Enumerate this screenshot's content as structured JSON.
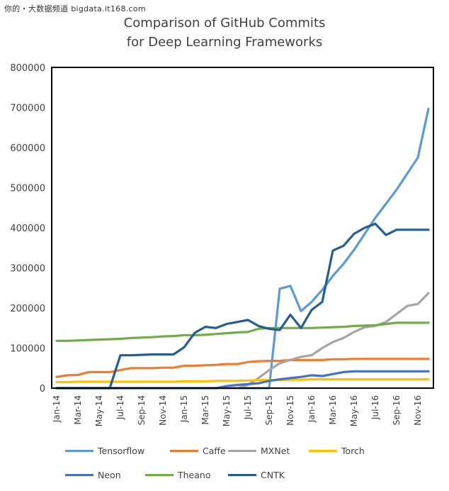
{
  "watermark": "你的・大数据频道 bigdata.it168.com",
  "chart_data": {
    "type": "line",
    "title": [
      "Comparison of GitHub Commits",
      "for Deep Learning Frameworks"
    ],
    "xlabel": "",
    "ylabel": "",
    "ylim": [
      0,
      800000
    ],
    "yticks": [
      "0",
      "100000",
      "200000",
      "300000",
      "400000",
      "500000",
      "600000",
      "700000",
      "800000"
    ],
    "x": [
      "Jan-14",
      "Feb-14",
      "Mar-14",
      "Apr-14",
      "May-14",
      "Jun-14",
      "Jul-14",
      "Aug-14",
      "Sep-14",
      "Oct-14",
      "Nov-14",
      "Dec-14",
      "Jan-15",
      "Feb-15",
      "Mar-15",
      "Apr-15",
      "May-15",
      "Jun-15",
      "Jul-15",
      "Aug-15",
      "Sep-15",
      "Oct-15",
      "Nov-15",
      "Dec-15",
      "Jan-16",
      "Feb-16",
      "Mar-16",
      "Apr-16",
      "May-16",
      "Jun-16",
      "Jul-16",
      "Aug-16",
      "Sep-16",
      "Oct-16",
      "Nov-16",
      "Dec-16"
    ],
    "xticks": [
      "Jan-14",
      "Mar-14",
      "May-14",
      "Jul-14",
      "Sep-14",
      "Nov-14",
      "Jan-15",
      "Mar-15",
      "May-15",
      "Jul-15",
      "Sep-15",
      "Nov-15",
      "Jan-16",
      "Mar-16",
      "May-16",
      "Jul-16",
      "Sep-16",
      "Nov-16"
    ],
    "grid": false,
    "legend_position": "bottom",
    "series": [
      {
        "name": "Tensorflow",
        "color": "#5b9bd5",
        "values": [
          0,
          0,
          0,
          0,
          0,
          0,
          0,
          0,
          0,
          0,
          0,
          0,
          0,
          0,
          0,
          0,
          0,
          0,
          0,
          0,
          0,
          248000,
          255000,
          192000,
          215000,
          245000,
          280000,
          310000,
          345000,
          385000,
          425000,
          460000,
          495000,
          535000,
          575000,
          697000
        ]
      },
      {
        "name": "Caffe",
        "color": "#ed7d31",
        "values": [
          28000,
          32000,
          33000,
          40000,
          40000,
          40000,
          45000,
          50000,
          50000,
          50000,
          51000,
          51000,
          56000,
          56000,
          57000,
          58000,
          60000,
          60000,
          65000,
          67000,
          68000,
          68000,
          70000,
          70000,
          70000,
          70000,
          72000,
          72000,
          73000,
          73000,
          73000,
          73000,
          73000,
          73000,
          73000,
          73000
        ]
      },
      {
        "name": "MXNet",
        "color": "#a5a5a5",
        "values": [
          0,
          0,
          0,
          0,
          0,
          0,
          0,
          0,
          0,
          0,
          0,
          0,
          0,
          0,
          0,
          0,
          0,
          0,
          8000,
          25000,
          45000,
          62000,
          70000,
          78000,
          82000,
          100000,
          115000,
          125000,
          140000,
          152000,
          155000,
          165000,
          185000,
          205000,
          210000,
          237000
        ]
      },
      {
        "name": "Torch",
        "color": "#ffc000",
        "values": [
          15000,
          15000,
          16000,
          16000,
          16000,
          16000,
          16000,
          16000,
          16000,
          16000,
          16000,
          16000,
          17000,
          17000,
          17000,
          18000,
          18000,
          18000,
          19000,
          20000,
          20000,
          20000,
          21000,
          21000,
          22000,
          22000,
          22000,
          22000,
          22000,
          22000,
          22000,
          22000,
          22000,
          22000,
          22000,
          22000
        ]
      },
      {
        "name": "Neon",
        "color": "#4472c4",
        "values": [
          0,
          0,
          0,
          0,
          0,
          0,
          0,
          0,
          0,
          0,
          0,
          0,
          0,
          0,
          0,
          0,
          5000,
          8000,
          10000,
          12000,
          18000,
          22000,
          25000,
          28000,
          32000,
          30000,
          35000,
          40000,
          42000,
          42000,
          42000,
          42000,
          42000,
          42000,
          42000,
          42000
        ]
      },
      {
        "name": "Theano",
        "color": "#70ad47",
        "values": [
          118000,
          118000,
          119000,
          120000,
          121000,
          122000,
          123000,
          125000,
          126000,
          127000,
          129000,
          130000,
          132000,
          132000,
          133000,
          135000,
          137000,
          139000,
          140000,
          148000,
          150000,
          150000,
          150000,
          150000,
          150000,
          151000,
          152000,
          153000,
          155000,
          156000,
          157000,
          160000,
          163000,
          163000,
          163000,
          163000
        ]
      },
      {
        "name": "CNTK",
        "color": "#255e91",
        "values": [
          0,
          0,
          0,
          0,
          0,
          0,
          82000,
          82000,
          83000,
          84000,
          84000,
          84000,
          102000,
          138000,
          153000,
          150000,
          160000,
          165000,
          170000,
          155000,
          148000,
          145000,
          183000,
          150000,
          195000,
          215000,
          343000,
          355000,
          385000,
          400000,
          410000,
          382000,
          395000,
          395000,
          395000,
          395000
        ]
      }
    ]
  }
}
